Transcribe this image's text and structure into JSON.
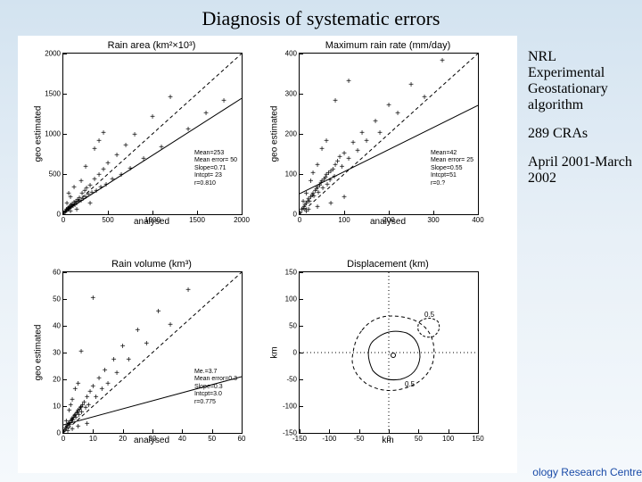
{
  "title": "Diagnosis of systematic errors",
  "sidebar": {
    "line1": "NRL Experimental Geostationary algorithm",
    "line2": "289 CRAs",
    "line3": "April 2001-March 2002"
  },
  "footer": "ology Research Centre",
  "colors": {
    "bg_top": "#d3e3f0",
    "bg_bot": "#f5f9fc",
    "panel_bg": "#ffffff",
    "axis": "#000000",
    "marker": "#000000",
    "dashed": "#000000",
    "solid": "#000000"
  },
  "panels": {
    "rain_area": {
      "title": "Rain area (km²×10³)",
      "ylabel": "geo estimated",
      "xlabel": "analysed",
      "xlim": [
        0,
        2000
      ],
      "ylim": [
        0,
        2000
      ],
      "xticks": [
        0,
        500,
        1000,
        1500,
        2000
      ],
      "yticks": [
        0,
        500,
        1000,
        1500,
        2000
      ],
      "stats": [
        "Mean=253",
        "Mean error= 50",
        "Slope=0.71",
        "Intcpt= 23",
        "r=0.810"
      ],
      "data": [
        [
          20,
          15
        ],
        [
          30,
          25
        ],
        [
          35,
          40
        ],
        [
          40,
          30
        ],
        [
          50,
          60
        ],
        [
          55,
          45
        ],
        [
          60,
          70
        ],
        [
          65,
          55
        ],
        [
          70,
          80
        ],
        [
          80,
          65
        ],
        [
          85,
          95
        ],
        [
          90,
          75
        ],
        [
          100,
          110
        ],
        [
          110,
          90
        ],
        [
          120,
          130
        ],
        [
          130,
          100
        ],
        [
          140,
          150
        ],
        [
          150,
          120
        ],
        [
          160,
          170
        ],
        [
          170,
          140
        ],
        [
          180,
          190
        ],
        [
          200,
          160
        ],
        [
          210,
          250
        ],
        [
          220,
          180
        ],
        [
          240,
          280
        ],
        [
          250,
          200
        ],
        [
          260,
          310
        ],
        [
          280,
          230
        ],
        [
          300,
          350
        ],
        [
          320,
          260
        ],
        [
          350,
          420
        ],
        [
          370,
          280
        ],
        [
          400,
          480
        ],
        [
          420,
          320
        ],
        [
          450,
          550
        ],
        [
          480,
          360
        ],
        [
          500,
          620
        ],
        [
          550,
          420
        ],
        [
          600,
          720
        ],
        [
          650,
          480
        ],
        [
          700,
          850
        ],
        [
          750,
          560
        ],
        [
          800,
          980
        ],
        [
          900,
          680
        ],
        [
          1000,
          1200
        ],
        [
          1100,
          820
        ],
        [
          1200,
          1450
        ],
        [
          1400,
          1050
        ],
        [
          1600,
          1250
        ],
        [
          1800,
          1400
        ],
        [
          40,
          120
        ],
        [
          80,
          200
        ],
        [
          120,
          320
        ],
        [
          250,
          580
        ],
        [
          400,
          900
        ],
        [
          150,
          50
        ],
        [
          300,
          120
        ],
        [
          200,
          400
        ],
        [
          450,
          1000
        ],
        [
          80,
          20
        ],
        [
          60,
          250
        ],
        [
          350,
          800
        ]
      ],
      "fit": {
        "slope": 0.71,
        "intercept": 23
      }
    },
    "max_rain": {
      "title": "Maximum rain rate (mm/day)",
      "ylabel": "geo estimated",
      "xlabel": "analysed",
      "xlim": [
        0,
        400
      ],
      "ylim": [
        0,
        400
      ],
      "xticks": [
        0,
        100,
        200,
        300,
        400
      ],
      "yticks": [
        0,
        100,
        200,
        300,
        400
      ],
      "stats": [
        "Mean=42",
        "Mean error= 25",
        "Slope=0.55",
        "Intcpt=51",
        "r=0.?"
      ],
      "data": [
        [
          5,
          8
        ],
        [
          8,
          12
        ],
        [
          10,
          15
        ],
        [
          12,
          20
        ],
        [
          15,
          25
        ],
        [
          18,
          30
        ],
        [
          20,
          35
        ],
        [
          22,
          28
        ],
        [
          25,
          40
        ],
        [
          28,
          45
        ],
        [
          30,
          50
        ],
        [
          32,
          42
        ],
        [
          35,
          55
        ],
        [
          38,
          60
        ],
        [
          40,
          65
        ],
        [
          42,
          52
        ],
        [
          45,
          70
        ],
        [
          48,
          75
        ],
        [
          50,
          80
        ],
        [
          52,
          62
        ],
        [
          55,
          85
        ],
        [
          58,
          90
        ],
        [
          60,
          95
        ],
        [
          62,
          72
        ],
        [
          65,
          100
        ],
        [
          68,
          82
        ],
        [
          70,
          105
        ],
        [
          75,
          110
        ],
        [
          78,
          92
        ],
        [
          80,
          120
        ],
        [
          85,
          130
        ],
        [
          90,
          140
        ],
        [
          95,
          115
        ],
        [
          100,
          150
        ],
        [
          110,
          135
        ],
        [
          120,
          175
        ],
        [
          130,
          155
        ],
        [
          140,
          200
        ],
        [
          150,
          180
        ],
        [
          170,
          230
        ],
        [
          180,
          200
        ],
        [
          200,
          270
        ],
        [
          220,
          250
        ],
        [
          250,
          320
        ],
        [
          280,
          290
        ],
        [
          320,
          380
        ],
        [
          8,
          30
        ],
        [
          15,
          50
        ],
        [
          25,
          80
        ],
        [
          40,
          120
        ],
        [
          60,
          180
        ],
        [
          20,
          8
        ],
        [
          40,
          15
        ],
        [
          70,
          25
        ],
        [
          100,
          40
        ],
        [
          30,
          100
        ],
        [
          50,
          160
        ],
        [
          15,
          5
        ],
        [
          80,
          280
        ],
        [
          110,
          330
        ]
      ],
      "fit": {
        "slope": 0.55,
        "intercept": 51
      }
    },
    "rain_vol": {
      "title": "Rain volume (km³)",
      "ylabel": "geo estimated",
      "xlabel": "analysed",
      "xlim": [
        0,
        60
      ],
      "ylim": [
        0,
        60
      ],
      "xticks": [
        0,
        10,
        20,
        30,
        40,
        50,
        60
      ],
      "yticks": [
        0,
        10,
        20,
        30,
        40,
        50,
        60
      ],
      "stats": [
        "Me.=3.7",
        "Mean error=0.3",
        "Slope=0.3",
        "Intcpt=3.0",
        "r=0.775"
      ],
      "data": [
        [
          0.5,
          0.8
        ],
        [
          0.8,
          1.2
        ],
        [
          1,
          1.5
        ],
        [
          1.2,
          2
        ],
        [
          1.5,
          2.5
        ],
        [
          1.8,
          3
        ],
        [
          2,
          3.5
        ],
        [
          2.2,
          2.8
        ],
        [
          2.5,
          4
        ],
        [
          2.8,
          4.5
        ],
        [
          3,
          5
        ],
        [
          3.2,
          4.2
        ],
        [
          3.5,
          5.5
        ],
        [
          3.8,
          6
        ],
        [
          4,
          6.5
        ],
        [
          4.2,
          5.2
        ],
        [
          4.5,
          7
        ],
        [
          4.8,
          7.5
        ],
        [
          5,
          8
        ],
        [
          5.2,
          6.2
        ],
        [
          5.5,
          8.5
        ],
        [
          5.8,
          9
        ],
        [
          6,
          9.5
        ],
        [
          6.2,
          7.2
        ],
        [
          6.5,
          10
        ],
        [
          7,
          11
        ],
        [
          7.5,
          9
        ],
        [
          8,
          13
        ],
        [
          8.5,
          10
        ],
        [
          9,
          15
        ],
        [
          10,
          17
        ],
        [
          11,
          13
        ],
        [
          12,
          20
        ],
        [
          13,
          16
        ],
        [
          14,
          23
        ],
        [
          15,
          18
        ],
        [
          17,
          27
        ],
        [
          18,
          22
        ],
        [
          20,
          32
        ],
        [
          22,
          27
        ],
        [
          25,
          38
        ],
        [
          28,
          33
        ],
        [
          32,
          45
        ],
        [
          36,
          40
        ],
        [
          42,
          53
        ],
        [
          1,
          4
        ],
        [
          2,
          8
        ],
        [
          3,
          12
        ],
        [
          5,
          18
        ],
        [
          1.5,
          0.5
        ],
        [
          3,
          1
        ],
        [
          5,
          2
        ],
        [
          8,
          3
        ],
        [
          2.5,
          10
        ],
        [
          4,
          16
        ],
        [
          10,
          50
        ],
        [
          6,
          30
        ]
      ],
      "fit": {
        "slope": 0.3,
        "intercept": 3.0
      }
    },
    "displacement": {
      "title": "Displacement (km)",
      "ylabel": "km",
      "xlabel": "km",
      "xlim": [
        -150,
        150
      ],
      "ylim": [
        -150,
        150
      ],
      "xticks": [
        -150,
        -100,
        -50,
        0,
        50,
        100,
        150
      ],
      "yticks": [
        -150,
        -100,
        -50,
        0,
        50,
        100,
        150
      ],
      "contour_labels": [
        "0.5",
        "0.5"
      ],
      "center_marker": [
        8,
        -5
      ]
    }
  }
}
